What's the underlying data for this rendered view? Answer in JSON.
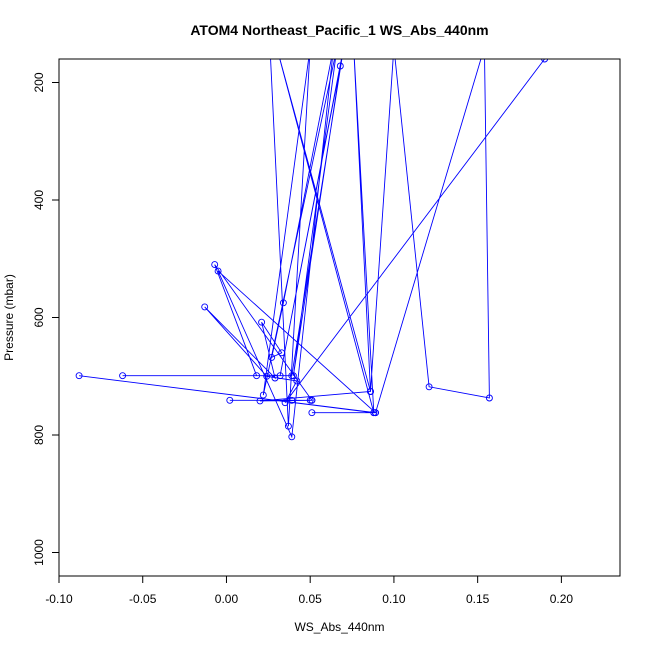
{
  "chart_data": {
    "type": "line",
    "title": "ATOM4 Northeast_Pacific_1 WS_Abs_440nm",
    "xlabel": "WS_Abs_440nm",
    "ylabel": "Pressure (mbar)",
    "xlim": [
      -0.1,
      0.235
    ],
    "ylim": [
      1040,
      160
    ],
    "y_reversed": true,
    "x_ticks": [
      -0.1,
      -0.05,
      0.0,
      0.05,
      0.1,
      0.15,
      0.2
    ],
    "x_tick_labels": [
      "-0.10",
      "-0.05",
      "0.00",
      "0.05",
      "0.10",
      "0.15",
      "0.20"
    ],
    "y_ticks": [
      200,
      400,
      600,
      800,
      1000
    ],
    "y_tick_labels": [
      "200",
      "400",
      "600",
      "800",
      "1000"
    ],
    "grid": false,
    "legend": "none",
    "line_color": "#0000ff",
    "series": [
      {
        "points": [
          [
            0.026,
            140
          ],
          [
            0.037,
            785
          ],
          [
            0.05,
            140
          ],
          [
            0.022,
            732
          ],
          [
            0.066,
            140
          ],
          [
            0.04,
            699
          ],
          [
            0.068,
            172
          ],
          [
            0.032,
            699
          ],
          [
            0.07,
            140
          ],
          [
            0.039,
            699
          ],
          [
            -0.062,
            699
          ],
          [
            0.018,
            699
          ],
          [
            -0.007,
            510
          ],
          [
            0.051,
            741
          ],
          [
            0.05,
            741
          ],
          [
            0.039,
            741
          ],
          [
            0.002,
            741
          ],
          [
            0.051,
            741
          ],
          [
            0.02,
            742
          ],
          [
            0.086,
            726
          ],
          [
            0.076,
            140
          ],
          [
            0.088,
            762
          ],
          [
            -0.088,
            699
          ],
          [
            0.089,
            762
          ],
          [
            0.051,
            762
          ],
          [
            0.088,
            762
          ],
          [
            0.03,
            140
          ],
          [
            0.086,
            726
          ],
          [
            0.1,
            140
          ],
          [
            0.121,
            718
          ],
          [
            0.157,
            737
          ],
          [
            0.154,
            140
          ],
          [
            0.089,
            762
          ],
          [
            -0.005,
            521
          ],
          [
            0.039,
            803
          ],
          [
            0.064,
            140
          ],
          [
            0.034,
            575
          ],
          [
            0.027,
            668
          ],
          [
            0.033,
            660
          ],
          [
            0.021,
            608
          ],
          [
            0.029,
            703
          ],
          [
            -0.013,
            582
          ],
          [
            0.024,
            700
          ],
          [
            0.042,
            708
          ],
          [
            0.035,
            745
          ],
          [
            0.19,
            160
          ]
        ]
      }
    ]
  }
}
